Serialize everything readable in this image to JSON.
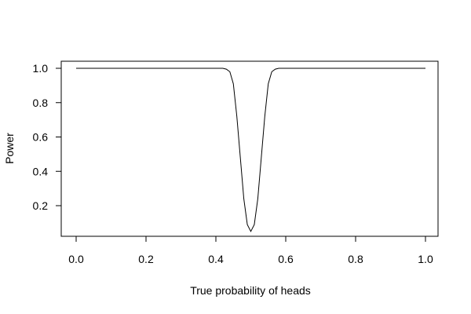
{
  "chart_data": {
    "type": "line",
    "title": "",
    "xlabel": "True probability of heads",
    "ylabel": "Power",
    "xlim": [
      0.0,
      1.0
    ],
    "ylim": [
      0.05,
      1.0
    ],
    "xticks": [
      "0.0",
      "0.2",
      "0.4",
      "0.6",
      "0.8",
      "1.0"
    ],
    "yticks": [
      "0.2",
      "0.4",
      "0.6",
      "0.8",
      "1.0"
    ],
    "grid": false,
    "legend": "none",
    "line_color": "#000000",
    "series": [
      {
        "x": [
          0.0,
          0.05,
          0.1,
          0.15,
          0.2,
          0.25,
          0.3,
          0.35,
          0.4,
          0.42,
          0.43,
          0.44,
          0.45,
          0.46,
          0.47,
          0.48,
          0.49,
          0.5,
          0.51,
          0.52,
          0.53,
          0.54,
          0.55,
          0.56,
          0.57,
          0.58,
          0.6,
          0.65,
          0.7,
          0.75,
          0.8,
          0.85,
          0.9,
          0.95,
          1.0
        ],
        "y": [
          1.0,
          1.0,
          1.0,
          1.0,
          1.0,
          1.0,
          1.0,
          1.0,
          1.0,
          1.0,
          0.995,
          0.98,
          0.91,
          0.72,
          0.48,
          0.24,
          0.09,
          0.05,
          0.09,
          0.24,
          0.48,
          0.72,
          0.91,
          0.98,
          0.995,
          1.0,
          1.0,
          1.0,
          1.0,
          1.0,
          1.0,
          1.0,
          1.0,
          1.0,
          1.0
        ]
      }
    ]
  }
}
